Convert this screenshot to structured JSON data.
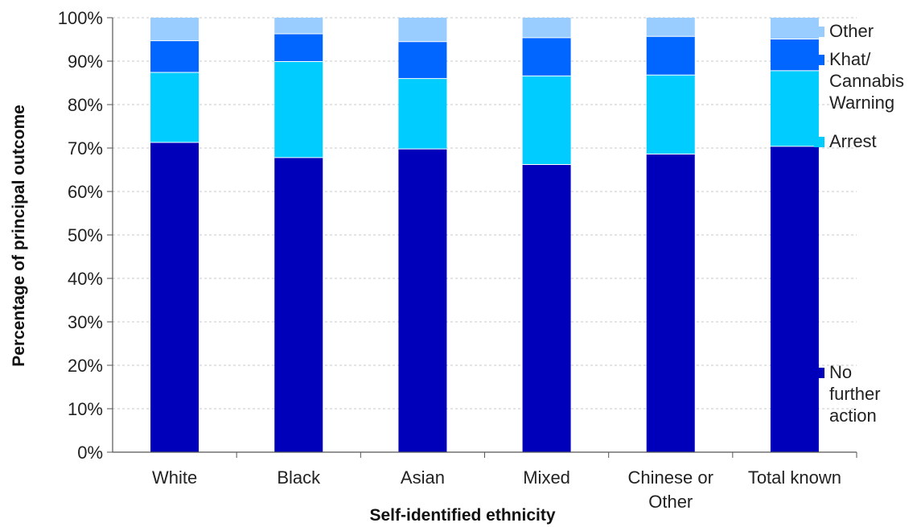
{
  "chart_data": {
    "type": "bar",
    "stacked": true,
    "percent_stacked": true,
    "title": "",
    "xlabel": "Self-identified  ethnicity",
    "ylabel": "Percentage of principal  outcome",
    "ylim": [
      0,
      100
    ],
    "y_ticks": [
      "0%",
      "10%",
      "20%",
      "30%",
      "40%",
      "50%",
      "60%",
      "70%",
      "80%",
      "90%",
      "100%"
    ],
    "grid": "horizontal dashed",
    "legend_position": "right",
    "categories": [
      [
        "White"
      ],
      [
        "Black"
      ],
      [
        "Asian"
      ],
      [
        "Mixed"
      ],
      [
        "Chinese or",
        "Other"
      ],
      [
        "Total known"
      ]
    ],
    "series": [
      {
        "name": [
          "No",
          "further",
          "action"
        ],
        "color": "#0000BB",
        "values": [
          71.3,
          67.8,
          69.8,
          66.2,
          68.6,
          70.4
        ]
      },
      {
        "name": [
          "Arrest"
        ],
        "color": "#00CCFF",
        "values": [
          16.1,
          22.1,
          16.2,
          20.4,
          18.2,
          17.4
        ]
      },
      {
        "name": [
          "Khat/",
          "Cannabis",
          "Warning"
        ],
        "color": "#0066FF",
        "values": [
          7.3,
          6.4,
          8.5,
          8.8,
          8.9,
          7.3
        ]
      },
      {
        "name": [
          "Other"
        ],
        "color": "#99CCFF",
        "values": [
          5.3,
          3.7,
          5.5,
          4.6,
          4.3,
          4.9
        ]
      }
    ]
  }
}
